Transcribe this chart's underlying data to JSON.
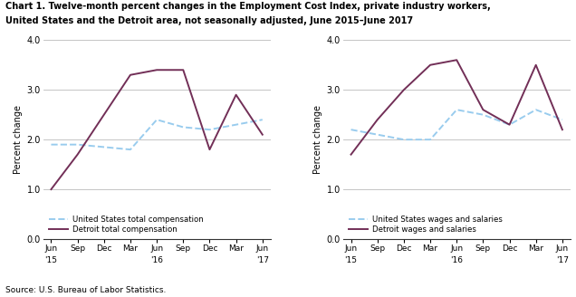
{
  "title_line1": "Chart 1. Twelve-month percent changes in the Employment Cost Index, private industry workers,",
  "title_line2": "United States and the Detroit area, not seasonally adjusted, June 2015–June 2017",
  "source": "Source: U.S. Bureau of Labor Statistics.",
  "ylabel": "Percent change",
  "xlabels": [
    "Jun",
    "Sep",
    "Dec",
    "Mar",
    "Jun",
    "Sep",
    "Dec",
    "Mar",
    "Jun"
  ],
  "year_labels": {
    "0": "'15",
    "4": "'16",
    "8": "'17"
  },
  "ylim": [
    0.0,
    4.0
  ],
  "yticks": [
    0.0,
    1.0,
    2.0,
    3.0,
    4.0
  ],
  "chart1": {
    "us_total": [
      1.9,
      1.9,
      1.85,
      1.8,
      2.4,
      2.25,
      2.2,
      2.3,
      2.4
    ],
    "detroit_total": [
      1.0,
      1.7,
      2.5,
      3.3,
      3.4,
      3.4,
      1.8,
      2.9,
      2.1
    ],
    "legend1": "United States total compensation",
    "legend2": "Detroit total compensation"
  },
  "chart2": {
    "us_wages": [
      2.2,
      2.1,
      2.0,
      2.0,
      2.6,
      2.5,
      2.3,
      2.6,
      2.4
    ],
    "detroit_wages": [
      1.7,
      2.4,
      3.0,
      3.5,
      3.6,
      2.6,
      2.3,
      3.5,
      2.2
    ],
    "legend1": "United States wages and salaries",
    "legend2": "Detroit wages and salaries"
  },
  "us_color": "#99CCEE",
  "detroit_color": "#722F57",
  "linewidth": 1.4,
  "grid_color": "#BBBBBB",
  "bg_color": "#FFFFFF"
}
